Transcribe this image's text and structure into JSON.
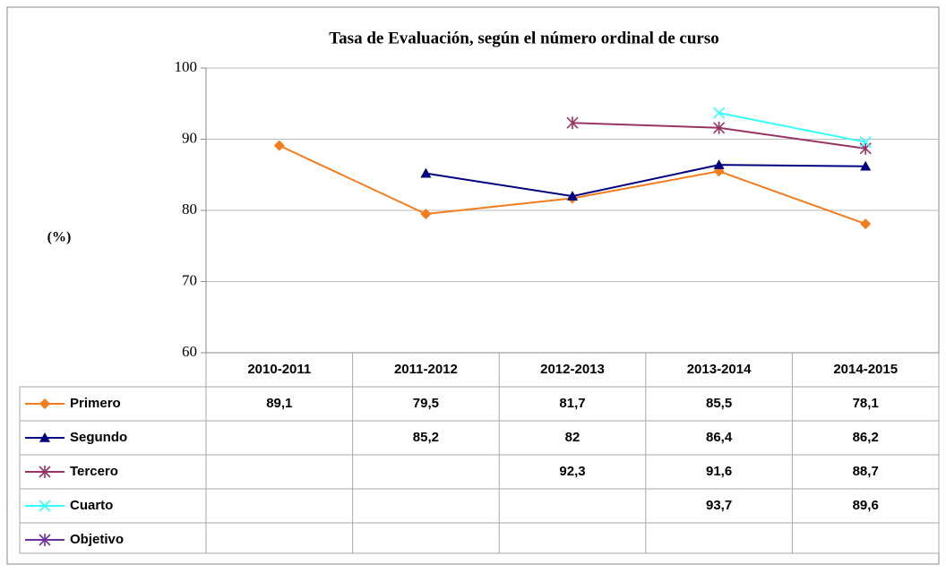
{
  "chart_data": {
    "type": "line",
    "title": "Tasa de Evaluación, según el número ordinal de curso",
    "y_label": "(%)",
    "categories": [
      "2010-2011",
      "2011-2012",
      "2012-2013",
      "2013-2014",
      "2014-2015"
    ],
    "series": [
      {
        "name": "Primero",
        "color": "#f47c1c",
        "marker": "diamond",
        "values": [
          89.1,
          79.5,
          81.7,
          85.5,
          78.1
        ],
        "value_labels": [
          "89,1",
          "79,5",
          "81,7",
          "85,5",
          "78,1"
        ]
      },
      {
        "name": "Segundo",
        "color": "#000080",
        "marker": "triangle",
        "values": [
          null,
          85.2,
          82,
          86.4,
          86.2
        ],
        "value_labels": [
          null,
          "85,2",
          "82",
          "86,4",
          "86,2"
        ]
      },
      {
        "name": "Tercero",
        "color": "#993366",
        "marker": "asterisk",
        "values": [
          null,
          null,
          92.3,
          91.6,
          88.7
        ],
        "value_labels": [
          null,
          null,
          "92,3",
          "91,6",
          "88,7"
        ]
      },
      {
        "name": "Cuarto",
        "color": "#33ffff",
        "marker": "x",
        "values": [
          null,
          null,
          null,
          93.7,
          89.6
        ],
        "value_labels": [
          null,
          null,
          null,
          "93,7",
          "89,6"
        ]
      },
      {
        "name": "Objetivo",
        "color": "#7030a0",
        "marker": "asterisk",
        "values": [
          null,
          null,
          null,
          null,
          null
        ],
        "value_labels": [
          null,
          null,
          null,
          null,
          null
        ]
      }
    ],
    "ylim": [
      60,
      100
    ],
    "yticks": [
      60,
      70,
      80,
      90,
      100
    ],
    "grid": true,
    "data_table": true
  }
}
